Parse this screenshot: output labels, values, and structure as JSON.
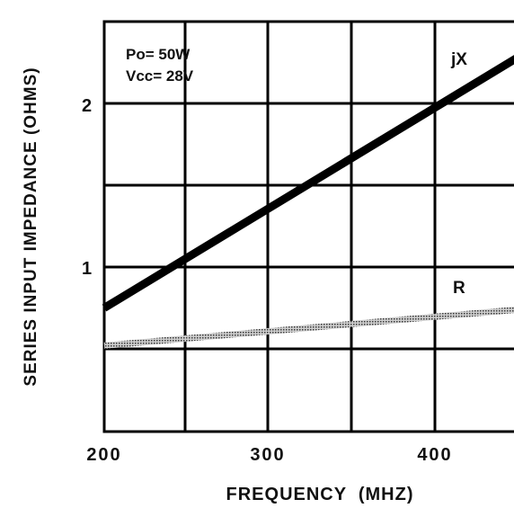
{
  "chart_data": {
    "type": "line",
    "xlabel": "FREQUENCY  (MHZ)",
    "ylabel": "SERIES INPUT IMPEDANCE (OHMS)",
    "xlim": [
      200,
      450
    ],
    "ylim": [
      0,
      2.5
    ],
    "x_ticks": [
      {
        "value": 200,
        "label": "200"
      },
      {
        "value": 300,
        "label": "300"
      },
      {
        "value": 400,
        "label": "400"
      }
    ],
    "y_ticks": [
      {
        "value": 1,
        "label": "1"
      },
      {
        "value": 2,
        "label": "2"
      }
    ],
    "grid": true,
    "annotations": [
      "Po= 50W",
      "Vcc= 28V"
    ],
    "series": [
      {
        "name": "jX",
        "x": [
          200,
          450
        ],
        "y": [
          0.75,
          2.28
        ],
        "color": "#000000",
        "style": "solid-thick"
      },
      {
        "name": "R",
        "x": [
          200,
          450
        ],
        "y": [
          0.52,
          0.74
        ],
        "color": "#777777",
        "style": "hatched"
      }
    ]
  }
}
